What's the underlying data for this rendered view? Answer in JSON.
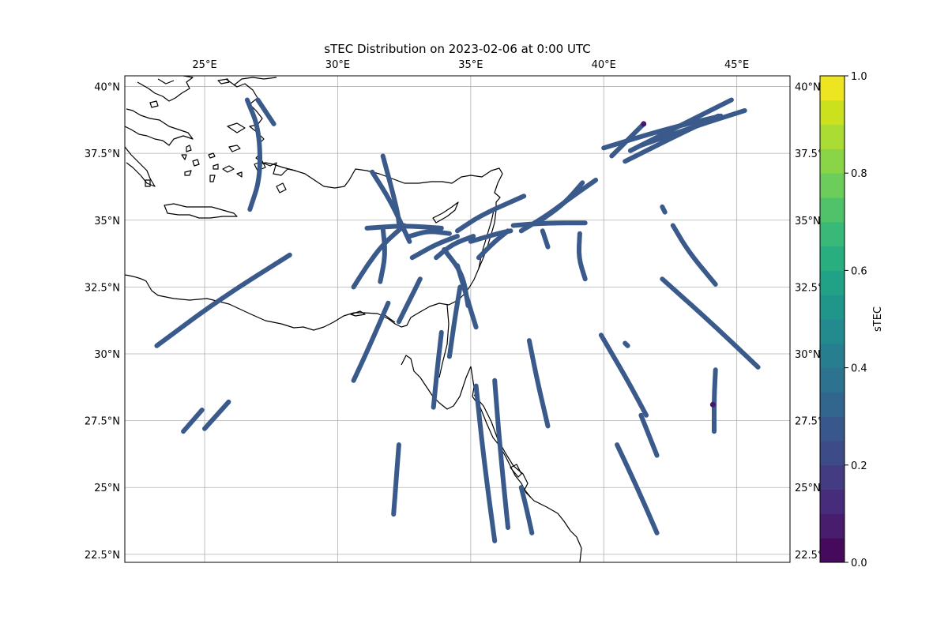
{
  "title": "sTEC Distribution on 2023-02-06 at 0:00 UTC",
  "map": {
    "lon_range": [
      22,
      47
    ],
    "lat_range": [
      22.2,
      40.4
    ],
    "lon_ticks": [
      "25°E",
      "30°E",
      "35°E",
      "40°E",
      "45°E"
    ],
    "lat_ticks": [
      "22.5°N",
      "25°N",
      "27.5°N",
      "30°N",
      "32.5°N",
      "35°N",
      "37.5°N",
      "40°N"
    ],
    "gridlines": true,
    "track_color": "#3b5a8c",
    "anomaly_color": "#47156b",
    "coast_color": "#000000"
  },
  "colorbar": {
    "label": "sTEC",
    "range": [
      0,
      1
    ],
    "ticks": [
      "0.0",
      "0.2",
      "0.4",
      "0.6",
      "0.8",
      "1.0"
    ],
    "cmap": "viridis"
  },
  "chart_data": {
    "type": "scatter",
    "value_name": "sTEC",
    "tracks": [
      {
        "lon": [
          23.2,
          25.5,
          28.2
        ],
        "lat": [
          30.3,
          32.0,
          33.7
        ]
      },
      {
        "lon": [
          24.2,
          24.9
        ],
        "lat": [
          27.1,
          27.9
        ]
      },
      {
        "lon": [
          25.0,
          25.9
        ],
        "lat": [
          27.2,
          28.2
        ]
      },
      {
        "lon": [
          26.6,
          27.05,
          27.1,
          26.7
        ],
        "lat": [
          39.5,
          38.4,
          36.6,
          35.4
        ]
      },
      {
        "lon": [
          27.0,
          27.6
        ],
        "lat": [
          39.5,
          38.6
        ]
      },
      {
        "lon": [
          30.6,
          31.1,
          31.7,
          32.5
        ],
        "lat": [
          32.5,
          33.3,
          34.1,
          34.8
        ]
      },
      {
        "lon": [
          30.6,
          31.2,
          31.9
        ],
        "lat": [
          29.0,
          30.3,
          31.9
        ]
      },
      {
        "lon": [
          31.1,
          32.5,
          33.9
        ],
        "lat": [
          34.7,
          34.8,
          34.7
        ]
      },
      {
        "lon": [
          31.7,
          32.0,
          32.25,
          32.3
        ],
        "lat": [
          37.4,
          36.3,
          35.3,
          34.9
        ]
      },
      {
        "lon": [
          31.3,
          32.0,
          32.7
        ],
        "lat": [
          36.8,
          35.7,
          34.2
        ]
      },
      {
        "lon": [
          31.7,
          31.8,
          31.6
        ],
        "lat": [
          34.7,
          33.7,
          32.7
        ]
      },
      {
        "lon": [
          32.3,
          32.7,
          33.1
        ],
        "lat": [
          31.2,
          32.0,
          32.8
        ]
      },
      {
        "lon": [
          33.7,
          34.3,
          35.1
        ],
        "lat": [
          33.6,
          34.1,
          34.4
        ]
      },
      {
        "lon": [
          32.7,
          33.4,
          34.2
        ],
        "lat": [
          34.4,
          34.6,
          34.5
        ]
      },
      {
        "lon": [
          32.8,
          33.7,
          34.5
        ],
        "lat": [
          33.6,
          34.1,
          34.4
        ]
      },
      {
        "lon": [
          34.0,
          34.7,
          34.9
        ],
        "lat": [
          33.9,
          33.0,
          31.8
        ]
      },
      {
        "lon": [
          34.5,
          34.8,
          35.2
        ],
        "lat": [
          33.3,
          32.3,
          31.0
        ]
      },
      {
        "lon": [
          34.2,
          34.4,
          34.6
        ],
        "lat": [
          29.9,
          31.3,
          32.5
        ]
      },
      {
        "lon": [
          33.6,
          33.75,
          33.9
        ],
        "lat": [
          28.0,
          29.5,
          30.8
        ]
      },
      {
        "lon": [
          34.5,
          35.4,
          37.0
        ],
        "lat": [
          34.6,
          35.2,
          35.9
        ]
      },
      {
        "lon": [
          35.0,
          36.0,
          36.5
        ],
        "lat": [
          34.2,
          34.5,
          34.6
        ]
      },
      {
        "lon": [
          35.3,
          35.9,
          36.4
        ],
        "lat": [
          33.6,
          34.2,
          34.6
        ]
      },
      {
        "lon": [
          36.6,
          37.9,
          39.3
        ],
        "lat": [
          34.8,
          34.9,
          34.9
        ]
      },
      {
        "lon": [
          36.9,
          37.9,
          38.7,
          39.7
        ],
        "lat": [
          34.6,
          35.2,
          35.8,
          36.5
        ]
      },
      {
        "lon": [
          37.5,
          38.5,
          39.2
        ],
        "lat": [
          34.9,
          35.6,
          36.4
        ]
      },
      {
        "lon": [
          37.7,
          37.9
        ],
        "lat": [
          34.6,
          34.0
        ]
      },
      {
        "lon": [
          39.1,
          39.05,
          39.3
        ],
        "lat": [
          34.5,
          33.6,
          32.8
        ]
      },
      {
        "lon": [
          32.1,
          32.2,
          32.3
        ],
        "lat": [
          24.0,
          25.3,
          26.6
        ]
      },
      {
        "lon": [
          35.2,
          35.5,
          35.9
        ],
        "lat": [
          28.8,
          26.0,
          23.0
        ]
      },
      {
        "lon": [
          35.9,
          36.1,
          36.4
        ],
        "lat": [
          29.0,
          26.5,
          23.5
        ]
      },
      {
        "lon": [
          36.9,
          37.1,
          37.3
        ],
        "lat": [
          25.0,
          24.2,
          23.3
        ]
      },
      {
        "lon": [
          37.2,
          37.5,
          37.9
        ],
        "lat": [
          30.5,
          29.0,
          27.3
        ]
      },
      {
        "lon": [
          39.9,
          40.9,
          41.6
        ],
        "lat": [
          30.7,
          29.0,
          27.7
        ]
      },
      {
        "lon": [
          41.4,
          42.0
        ],
        "lat": [
          27.7,
          26.2
        ]
      },
      {
        "lon": [
          40.5,
          41.3,
          42.0
        ],
        "lat": [
          26.6,
          24.9,
          23.3
        ]
      },
      {
        "lon": [
          42.2,
          44.0,
          45.8
        ],
        "lat": [
          32.8,
          31.2,
          29.5
        ]
      },
      {
        "lon": [
          42.6,
          43.2,
          44.2
        ],
        "lat": [
          34.8,
          33.8,
          32.6
        ]
      },
      {
        "lon": [
          44.2,
          44.15,
          44.15
        ],
        "lat": [
          29.4,
          28.4,
          27.1
        ]
      },
      {
        "lon": [
          40.0,
          42.3,
          44.4
        ],
        "lat": [
          37.7,
          38.4,
          38.9
        ]
      },
      {
        "lon": [
          41.0,
          43.0,
          44.8
        ],
        "lat": [
          37.6,
          38.6,
          39.5
        ]
      },
      {
        "lon": [
          41.4,
          43.4,
          45.3
        ],
        "lat": [
          37.8,
          38.5,
          39.1
        ]
      },
      {
        "lon": [
          40.8,
          42.8,
          44.3
        ],
        "lat": [
          37.2,
          38.2,
          38.9
        ]
      },
      {
        "lon": [
          40.3,
          41.0,
          41.5
        ],
        "lat": [
          37.4,
          38.1,
          38.6
        ]
      },
      {
        "lon": [
          42.2,
          42.3
        ],
        "lat": [
          35.5,
          35.3
        ]
      },
      {
        "lon": [
          40.8,
          40.9
        ],
        "lat": [
          30.4,
          30.3
        ]
      }
    ],
    "anomalies": [
      {
        "lon": 41.5,
        "lat": 38.6
      },
      {
        "lon": 44.1,
        "lat": 28.1
      }
    ]
  }
}
